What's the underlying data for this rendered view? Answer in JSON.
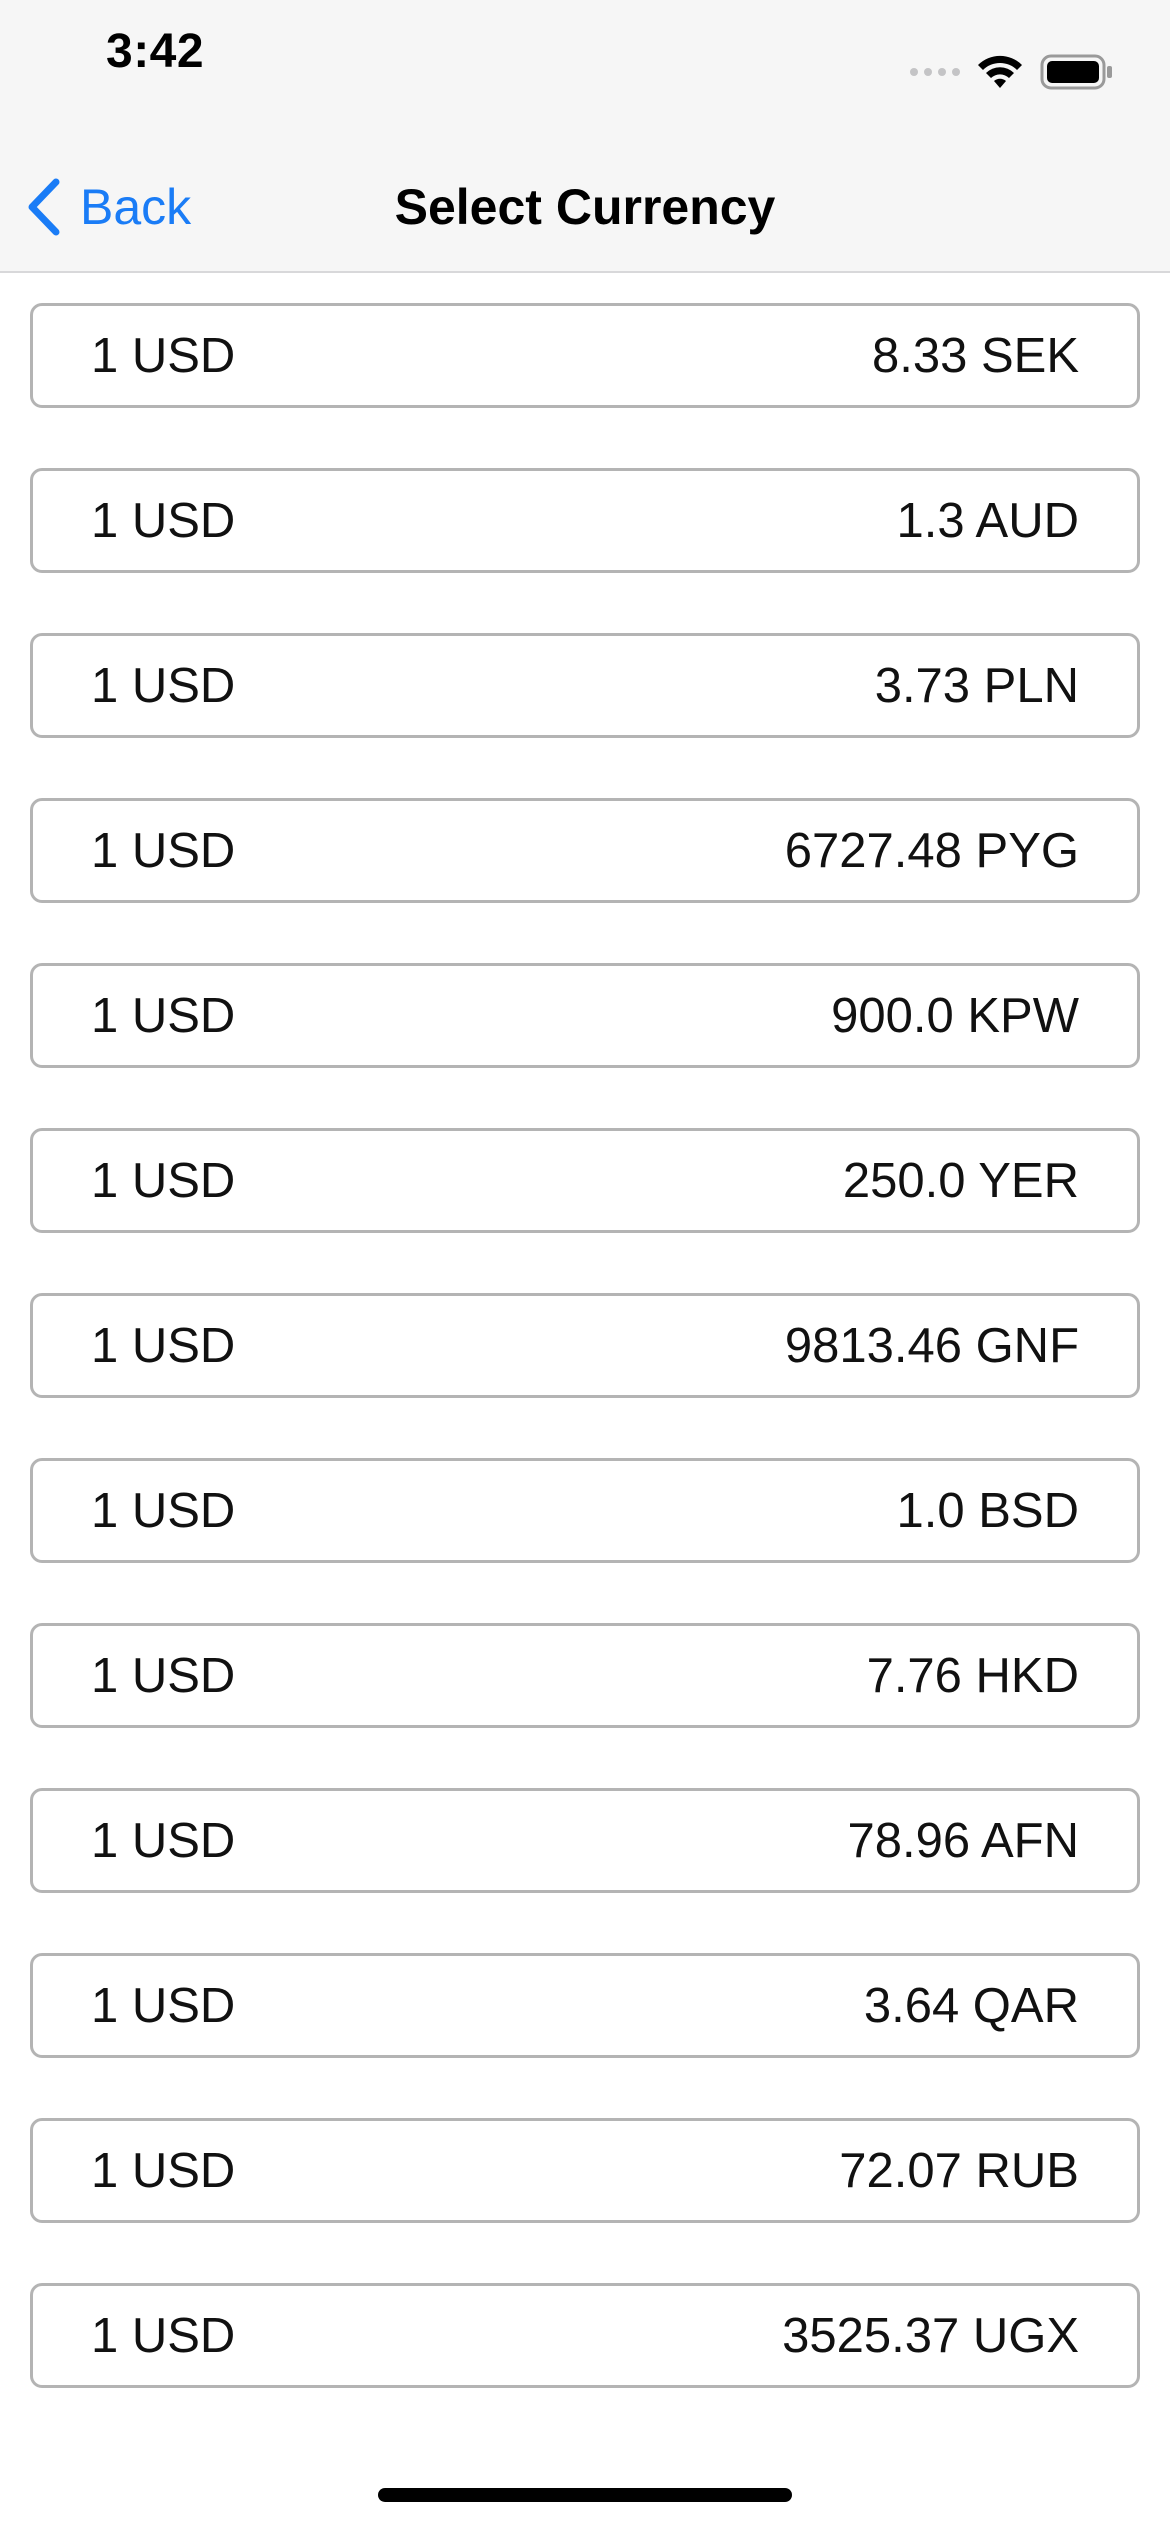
{
  "status_bar": {
    "time": "3:42"
  },
  "nav": {
    "back_label": "Back",
    "title": "Select Currency"
  },
  "colors": {
    "accent": "#1a7cf6",
    "row_border": "#b4b4b4",
    "bar_background": "#f6f6f6"
  },
  "rows": [
    {
      "base": "1 USD",
      "rate": "8.33 SEK"
    },
    {
      "base": "1 USD",
      "rate": "1.3 AUD"
    },
    {
      "base": "1 USD",
      "rate": "3.73 PLN"
    },
    {
      "base": "1 USD",
      "rate": "6727.48 PYG"
    },
    {
      "base": "1 USD",
      "rate": "900.0 KPW"
    },
    {
      "base": "1 USD",
      "rate": "250.0 YER"
    },
    {
      "base": "1 USD",
      "rate": "9813.46 GNF"
    },
    {
      "base": "1 USD",
      "rate": "1.0 BSD"
    },
    {
      "base": "1 USD",
      "rate": "7.76 HKD"
    },
    {
      "base": "1 USD",
      "rate": "78.96 AFN"
    },
    {
      "base": "1 USD",
      "rate": "3.64 QAR"
    },
    {
      "base": "1 USD",
      "rate": "72.07 RUB"
    },
    {
      "base": "1 USD",
      "rate": "3525.37 UGX"
    }
  ]
}
